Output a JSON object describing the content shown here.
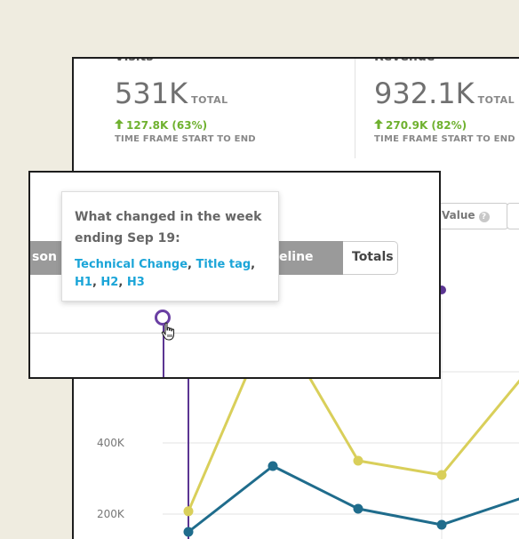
{
  "cards": [
    {
      "label": "Visits",
      "value": "531K",
      "unit": "TOTAL",
      "delta": "127.8K (63%)",
      "timeframe": "TIME FRAME START TO END"
    },
    {
      "label": "Revenue",
      "value": "932.1K",
      "unit": "TOTAL",
      "delta": "270.9K (82%)",
      "timeframe": "TIME FRAME START TO END"
    }
  ],
  "controls": {
    "value_label": "Value",
    "value_help": "?",
    "segments": [
      "son",
      "eline",
      "Totals"
    ]
  },
  "tooltip": {
    "title": "What changed in the week ending Sep 19:",
    "links": [
      "Technical Change",
      "Title tag",
      "H1",
      "H2",
      "H3"
    ]
  },
  "colors": {
    "accent_green": "#6fb12f",
    "link_blue": "#1ba5d8",
    "series_yellow": "#d9cf5a",
    "series_blue": "#1f6c8c",
    "marker_purple": "#5b3592"
  },
  "icons": {
    "delta": "arrow-up-icon",
    "help": "question-circle-icon",
    "cursor": "hand-pointer-icon"
  },
  "chart_data": {
    "type": "line",
    "title": "",
    "ylabel": "",
    "xlabel": "",
    "y_ticks": [
      "400K",
      "200K"
    ],
    "x": [
      1,
      2,
      3,
      4,
      5
    ],
    "ylim": [
      100000,
      900000
    ],
    "series": [
      {
        "color": "#d9cf5a",
        "values": [
          208000,
          760000,
          350000,
          310000,
          600000
        ]
      },
      {
        "color": "#1f6c8c",
        "values": [
          150000,
          335000,
          215000,
          170000,
          250000
        ]
      }
    ],
    "annotation": {
      "x": 1,
      "label": "event-marker"
    }
  }
}
